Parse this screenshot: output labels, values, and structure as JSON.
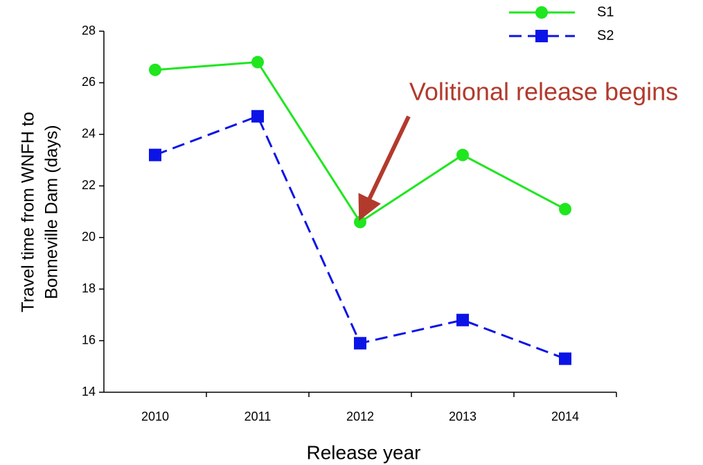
{
  "chart_data": {
    "type": "line",
    "categories": [
      "2010",
      "2011",
      "2012",
      "2013",
      "2014"
    ],
    "series": [
      {
        "name": "S1",
        "color": "#1fe61f",
        "dashed": false,
        "marker": "circle",
        "values": [
          26.5,
          26.8,
          20.6,
          23.2,
          21.1
        ]
      },
      {
        "name": "S2",
        "color": "#0b14e6",
        "dashed": true,
        "marker": "square",
        "values": [
          23.2,
          24.7,
          15.9,
          16.8,
          15.3
        ]
      }
    ],
    "ylim": [
      14,
      28
    ],
    "yticks": [
      14,
      16,
      18,
      20,
      22,
      24,
      26,
      28
    ],
    "x_label": "Release year",
    "y_label": [
      "Travel time from WNFH to",
      "Bonneville Dam (days)"
    ],
    "annotation": {
      "text": "Volitional release begins",
      "color": "#b23a2c",
      "category_index": 2,
      "series_index": 0
    },
    "legend": "top-right"
  }
}
